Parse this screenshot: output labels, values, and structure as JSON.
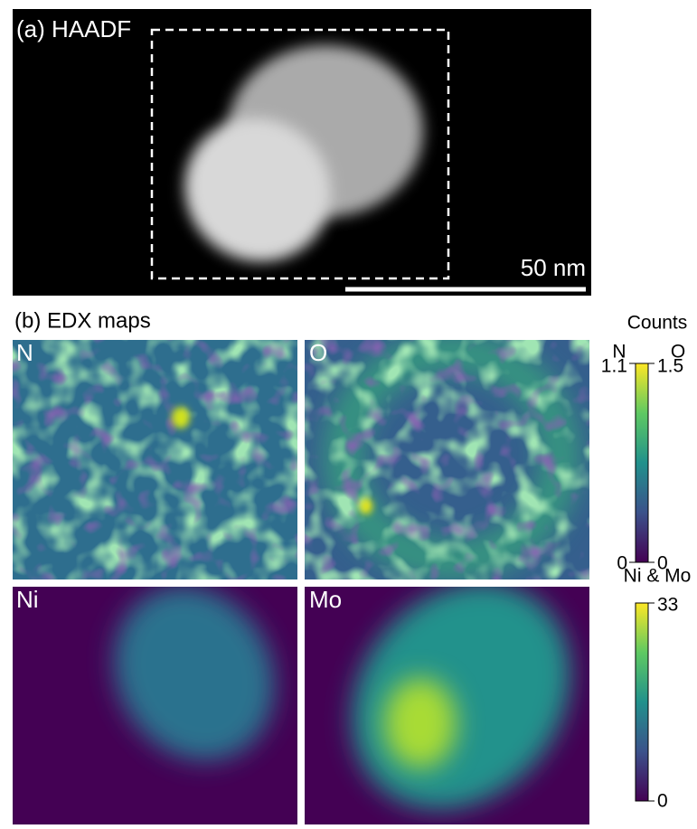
{
  "panel_a": {
    "label": "(a) HAADF",
    "scale_bar": "50 nm"
  },
  "panel_b": {
    "label": "(b) EDX maps",
    "maps": [
      "N",
      "O",
      "Ni",
      "Mo"
    ],
    "colorbar_top": {
      "title": "Counts",
      "left_label": "N",
      "right_label": "O",
      "left_max": 1.1,
      "right_max": 1.5,
      "left_min": 0,
      "right_min": 0
    },
    "colorbar_bottom": {
      "title": "Ni & Mo",
      "max": 33,
      "min": 0
    }
  }
}
